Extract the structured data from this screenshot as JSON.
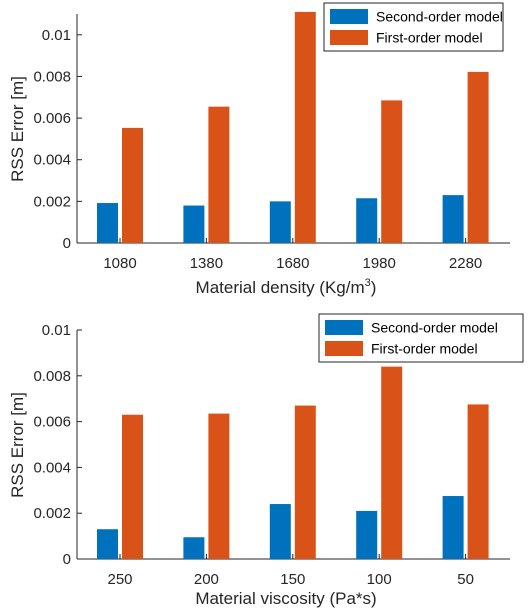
{
  "colors": {
    "series_1": "#0072BD",
    "series_2": "#D95319",
    "axis": "#262626",
    "legend_border": "#262626"
  },
  "chart_data": [
    {
      "type": "bar",
      "categories": [
        "1080",
        "1380",
        "1680",
        "1980",
        "2280"
      ],
      "series": [
        {
          "name": "Second-order model",
          "values": [
            0.00192,
            0.0018,
            0.002,
            0.00215,
            0.0023
          ]
        },
        {
          "name": "First-order model",
          "values": [
            0.00553,
            0.00655,
            0.0111,
            0.00685,
            0.00822
          ]
        }
      ],
      "xlabel": "Material density (Kg/m",
      "xlabel_sup": "3",
      "xlabel_end": ")",
      "ylabel": "RSS Error [m]",
      "ylim": [
        0,
        0.011
      ],
      "yticks": [
        0,
        0.002,
        0.004,
        0.006,
        0.008,
        0.01
      ],
      "ytick_labels": [
        "0",
        "0.002",
        "0.004",
        "0.006",
        "0.008",
        "0.01"
      ],
      "legend_position": "top-right",
      "grid": false
    },
    {
      "type": "bar",
      "categories": [
        "250",
        "200",
        "150",
        "100",
        "50"
      ],
      "series": [
        {
          "name": "Second-order model",
          "values": [
            0.0013,
            0.00095,
            0.0024,
            0.0021,
            0.00275
          ]
        },
        {
          "name": "First-order model",
          "values": [
            0.0063,
            0.00635,
            0.0067,
            0.0084,
            0.00675
          ]
        }
      ],
      "xlabel": "Material viscosity (Pa*s)",
      "ylabel": "RSS Error [m]",
      "ylim": [
        0,
        0.01
      ],
      "yticks": [
        0,
        0.002,
        0.004,
        0.006,
        0.008,
        0.01
      ],
      "ytick_labels": [
        "0",
        "0.002",
        "0.004",
        "0.006",
        "0.008",
        "0.01"
      ],
      "legend_position": "top-right",
      "grid": false
    }
  ]
}
